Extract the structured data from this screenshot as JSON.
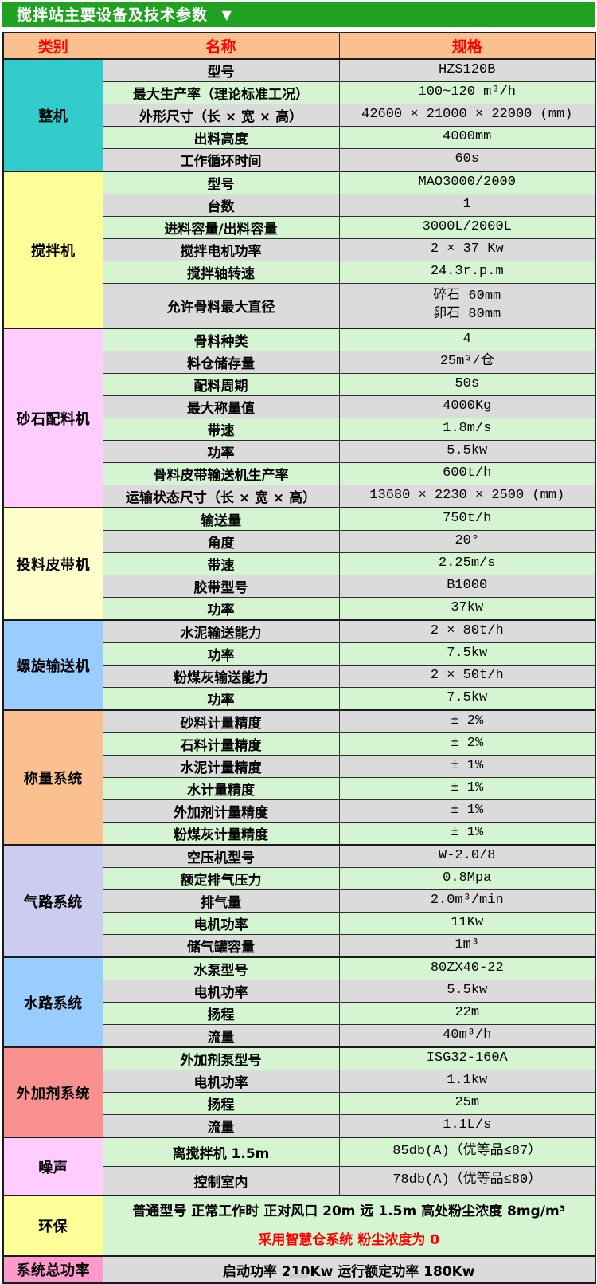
{
  "title": {
    "text": "搅拌站主要设备及技术参数",
    "arrow": "▼"
  },
  "header": {
    "category": "类别",
    "name": "名称",
    "spec": "规格"
  },
  "colors": {
    "title_bar_green": "#21A121",
    "header_orange": "#FAC090",
    "header_text_red": "#FF0000",
    "row_gray": "#DBDBDB",
    "row_green": "#D5F5D2",
    "highlight_red": "#FF0000"
  },
  "sections": [
    {
      "label": "整机",
      "color": "#33CCCC",
      "rows": [
        {
          "name": "型号",
          "spec": "HZS120B"
        },
        {
          "name": "最大生产率（理论标准工况）",
          "spec": "100~120 m³/h"
        },
        {
          "name": "外形尺寸（长 × 宽 × 高）",
          "spec": "42600 × 21000 × 22000 (mm)"
        },
        {
          "name": "出料高度",
          "spec": "4000mm"
        },
        {
          "name": "工作循环时间",
          "spec": "60s"
        }
      ]
    },
    {
      "label": "搅拌机",
      "color": "#FFFF99",
      "rows": [
        {
          "name": "型号",
          "spec": "MAO3000/2000"
        },
        {
          "name": "台数",
          "spec": "1"
        },
        {
          "name": "进料容量/出料容量",
          "spec": "3000L/2000L"
        },
        {
          "name": "搅拌电机功率",
          "spec": "2 × 37 Kw"
        },
        {
          "name": "搅拌轴转速",
          "spec": "24.3r.p.m"
        },
        {
          "name": "允许骨料最大直径",
          "spec": "碎石 60mm\n卵石 80mm",
          "tall": true
        }
      ]
    },
    {
      "label": "砂石配料机",
      "color": "#FFCCFF",
      "rows": [
        {
          "name": "骨料种类",
          "spec": "4"
        },
        {
          "name": "料仓储存量",
          "spec": "25m³/仓"
        },
        {
          "name": "配料周期",
          "spec": "50s"
        },
        {
          "name": "最大称量值",
          "spec": "4000Kg"
        },
        {
          "name": "带速",
          "spec": "1.8m/s"
        },
        {
          "name": "功率",
          "spec": "5.5kw"
        },
        {
          "name": "骨料皮带输送机生产率",
          "spec": "600t/h"
        },
        {
          "name": "运输状态尺寸（长 × 宽 × 高）",
          "spec": "13680 × 2230 × 2500 (mm)"
        }
      ]
    },
    {
      "label": "投料皮带机",
      "color": "#FFFFCC",
      "rows": [
        {
          "name": "输送量",
          "spec": "750t/h"
        },
        {
          "name": "角度",
          "spec": "20°"
        },
        {
          "name": "带速",
          "spec": "2.25m/s"
        },
        {
          "name": "胶带型号",
          "spec": "B1000"
        },
        {
          "name": "功率",
          "spec": "37kw"
        }
      ]
    },
    {
      "label": "螺旋输送机",
      "color": "#99CCFF",
      "rows": [
        {
          "name": "水泥输送能力",
          "spec": "2 × 80t/h"
        },
        {
          "name": "功率",
          "spec": "7.5kw"
        },
        {
          "name": "粉煤灰输送能力",
          "spec": "2 × 50t/h"
        },
        {
          "name": "功率",
          "spec": "7.5kw"
        }
      ]
    },
    {
      "label": "称量系统",
      "color": "#FAC090",
      "rows": [
        {
          "name": "砂料计量精度",
          "spec": "± 2%"
        },
        {
          "name": "石料计量精度",
          "spec": "± 2%"
        },
        {
          "name": "水泥计量精度",
          "spec": "± 1%"
        },
        {
          "name": "水计量精度",
          "spec": "± 1%"
        },
        {
          "name": "外加剂计量精度",
          "spec": "± 1%"
        },
        {
          "name": "粉煤灰计量精度",
          "spec": "± 1%"
        }
      ]
    },
    {
      "label": "气路系统",
      "color": "#CCCCF0",
      "rows": [
        {
          "name": "空压机型号",
          "spec": "W-2.0/8"
        },
        {
          "name": "额定排气压力",
          "spec": "0.8Mpa"
        },
        {
          "name": "排气量",
          "spec": "2.0m³/min"
        },
        {
          "name": "电机功率",
          "spec": "11Kw"
        },
        {
          "name": "储气罐容量",
          "spec": "1m³"
        }
      ]
    },
    {
      "label": "水路系统",
      "color": "#99CCFF",
      "rows": [
        {
          "name": "水泵型号",
          "spec": "80ZX40-22"
        },
        {
          "name": "电机功率",
          "spec": "5.5kw"
        },
        {
          "name": "扬程",
          "spec": "22m"
        },
        {
          "name": "流量",
          "spec": "40m³/h"
        }
      ]
    },
    {
      "label": "外加剂系统",
      "color": "#FA9191",
      "rows": [
        {
          "name": "外加剂泵型号",
          "spec": "ISG32-160A"
        },
        {
          "name": "电机功率",
          "spec": "1.1kw"
        },
        {
          "name": "扬程",
          "spec": "25m"
        },
        {
          "name": "流量",
          "spec": "1.1L/s"
        }
      ]
    },
    {
      "label": "噪声",
      "color": "#FFCCFF",
      "rows": [
        {
          "name": "离搅拌机 1.5m",
          "spec": "85db(A)（优等品≤87）"
        },
        {
          "name": "控制室内",
          "spec": "78db(A)（优等品≤80）"
        }
      ]
    },
    {
      "label": "环保",
      "color": "#FFFF99",
      "lines": [
        {
          "text": "普通型号 正常工作时 正对风口 20m 远 1.5m 高处粉尘浓度 8mg/m³",
          "color": "#000000"
        },
        {
          "text": "采用智慧仓系统 粉尘浓度为 0",
          "color": "#FF0000"
        }
      ]
    },
    {
      "label": "系统总功率",
      "color": "#FF99CC",
      "lines": [
        {
          "text": "启动功率 210Kw 运行额定功率 180Kw",
          "color": "#000000"
        }
      ]
    }
  ]
}
